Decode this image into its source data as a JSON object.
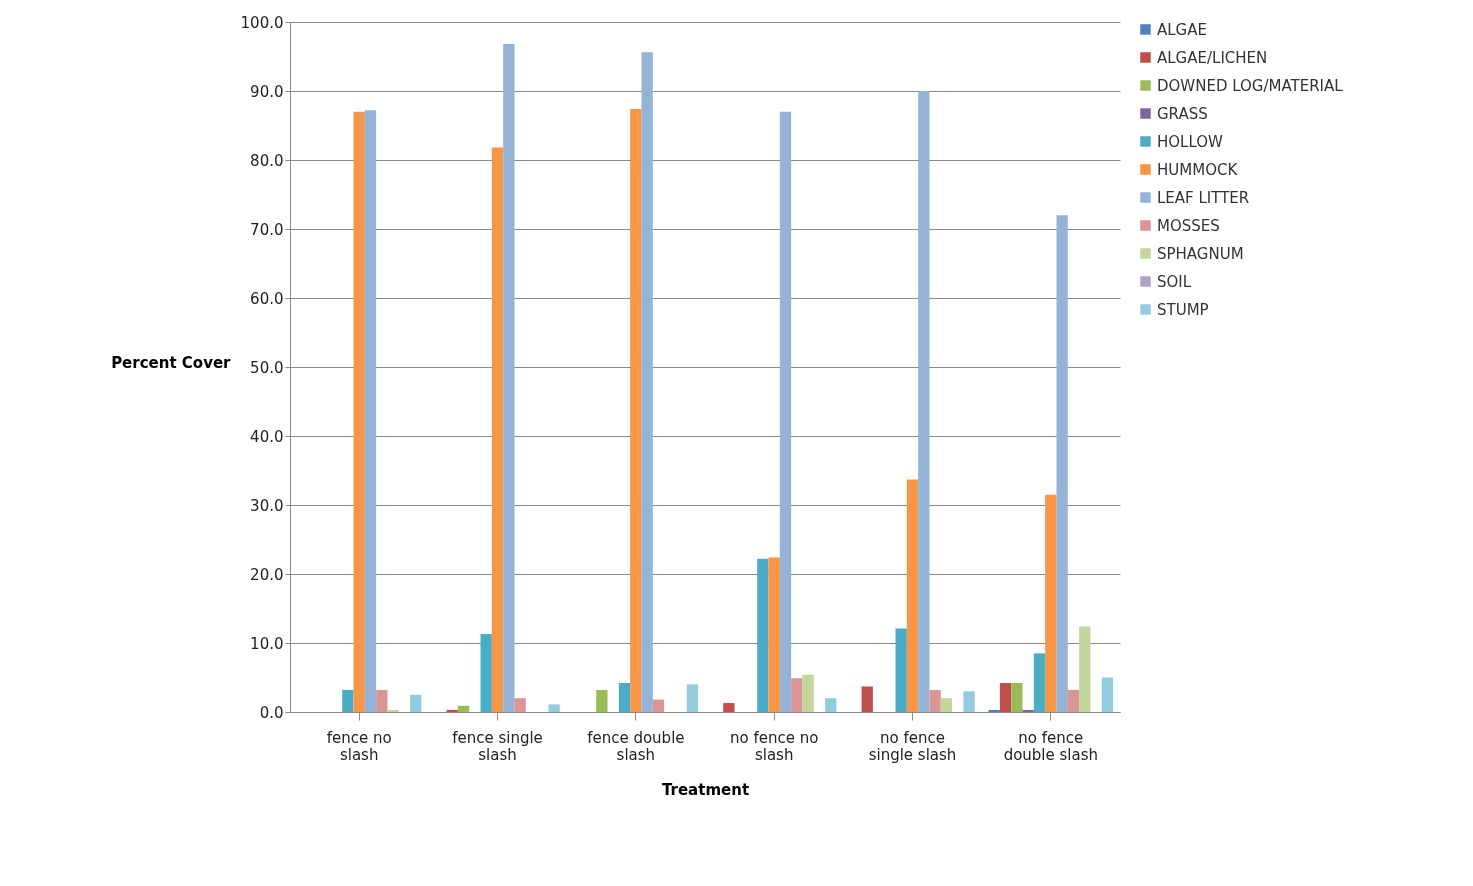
{
  "chart_data": {
    "type": "bar",
    "xlabel": "Treatment",
    "ylabel": "Percent Cover",
    "categories": [
      "fence no slash",
      "fence single slash",
      "fence double slash",
      "no fence no slash",
      "no fence single slash",
      "no fence double slash"
    ],
    "series": [
      {
        "name": "ALGAE",
        "color": "#4f81bd",
        "values": [
          0,
          0,
          0,
          0,
          0,
          0.3
        ]
      },
      {
        "name": "ALGAE/LICHEN",
        "color": "#c0504d",
        "values": [
          0,
          0.3,
          0,
          1.3,
          3.7,
          4.2
        ]
      },
      {
        "name": "DOWNED LOG/MATERIAL",
        "color": "#9bbb59",
        "values": [
          0,
          0.9,
          3.2,
          0,
          0,
          4.2
        ]
      },
      {
        "name": "GRASS",
        "color": "#8064a2",
        "values": [
          0,
          0,
          0,
          0,
          0,
          0.3
        ]
      },
      {
        "name": "HOLLOW",
        "color": "#4bacc6",
        "values": [
          3.2,
          11.3,
          4.2,
          22.2,
          12.1,
          8.5
        ]
      },
      {
        "name": "HUMMOCK",
        "color": "#f79646",
        "values": [
          87.0,
          81.8,
          87.4,
          22.4,
          33.7,
          31.5
        ]
      },
      {
        "name": "LEAF LITTER",
        "color": "#95b3d7",
        "values": [
          87.2,
          96.8,
          95.6,
          87.0,
          90.0,
          72.0
        ]
      },
      {
        "name": "MOSSES",
        "color": "#d99694",
        "values": [
          3.2,
          2.0,
          1.8,
          4.9,
          3.2,
          3.2
        ]
      },
      {
        "name": "SPHAGNUM",
        "color": "#c3d69b",
        "values": [
          0.3,
          0,
          0,
          5.4,
          2.0,
          12.4
        ]
      },
      {
        "name": "SOIL",
        "color": "#b3a2c7",
        "values": [
          0,
          0,
          0,
          0,
          0,
          0
        ]
      },
      {
        "name": "STUMP",
        "color": "#93cddd",
        "values": [
          2.5,
          1.1,
          4.0,
          2.0,
          3.0,
          5.0
        ]
      }
    ],
    "ylim": [
      0,
      100
    ],
    "yticks": [
      {
        "value": 0,
        "label": "0.0"
      },
      {
        "value": 10,
        "label": "10.0"
      },
      {
        "value": 20,
        "label": "20.0"
      },
      {
        "value": 30,
        "label": "30.0"
      },
      {
        "value": 40,
        "label": "40.0"
      },
      {
        "value": 50,
        "label": "50.0"
      },
      {
        "value": 60,
        "label": "60.0"
      },
      {
        "value": 70,
        "label": "70.0"
      },
      {
        "value": 80,
        "label": "80.0"
      },
      {
        "value": 90,
        "label": "90.0"
      },
      {
        "value": 100,
        "label": "100.0"
      }
    ],
    "grid": "y",
    "legend": "right"
  }
}
